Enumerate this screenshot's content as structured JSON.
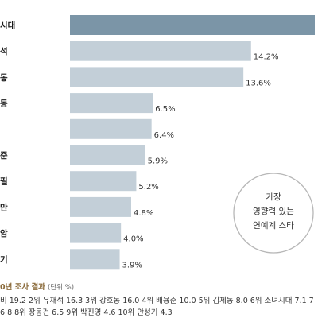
{
  "chart_data": {
    "type": "bar",
    "orientation": "horizontal",
    "categories": [
      "시대",
      "석",
      "동",
      "동",
      "",
      "준",
      "필",
      "만",
      "암",
      "기"
    ],
    "values": [
      null,
      14.2,
      13.6,
      6.5,
      6.4,
      5.9,
      5.2,
      4.8,
      4.0,
      3.9
    ],
    "value_labels": [
      "",
      "14.2%",
      "13.6%",
      "6.5%",
      "6.4%",
      "5.9%",
      "5.2%",
      "4.8%",
      "4.0%",
      "3.9%"
    ],
    "xlim": [
      0,
      19.2
    ],
    "colors": {
      "highlight": "#7b95a7",
      "bar": "#c3cfd8",
      "circle_border": "#b7b7b7"
    }
  },
  "annotation": [
    "가장",
    "영향력 있는",
    "연예계 스타"
  ],
  "note": {
    "year": "0년 조사 결과",
    "unit": "(단위 %)",
    "line1": "비 19.2 2위 유재석 16.3 3위 강호동 16.0 4위 배용준 10.0 5위 김제동 8.0 6위 소녀시대 7.1 7",
    "line2": "6.8 8위 장동건 6.5 9위 박진영 4.6 10위 안성기 4.3"
  }
}
